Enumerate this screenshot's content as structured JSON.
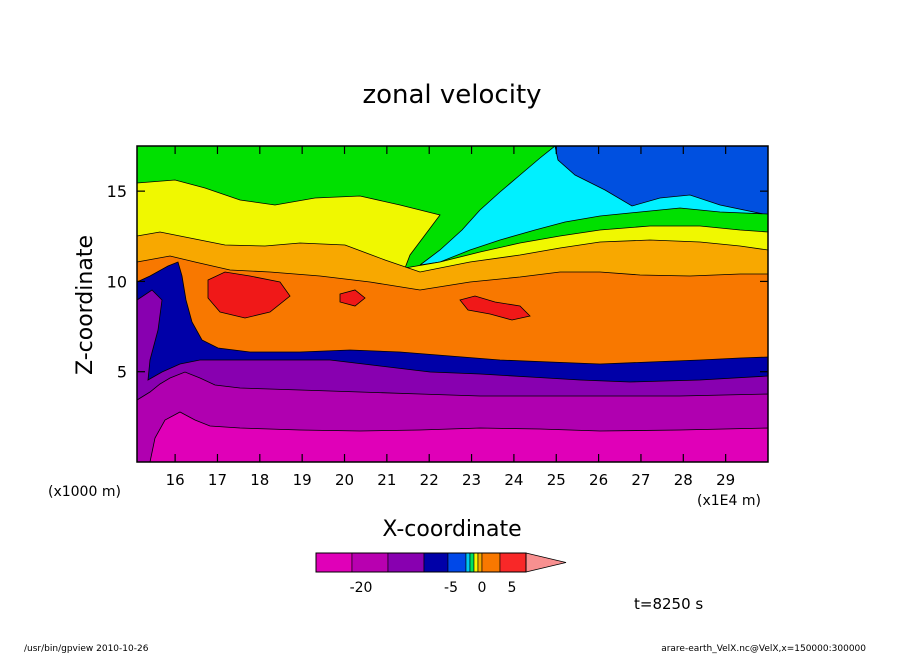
{
  "chart_data": {
    "type": "heatmap",
    "title": "zonal velocity",
    "xlabel": "X-coordinate",
    "ylabel": "Z-coordinate",
    "x_unit": "(x1E4 m)",
    "y_unit": "(x1000 m)",
    "xlim": [
      15.1,
      30.0
    ],
    "ylim": [
      0.0,
      17.5
    ],
    "x_ticks": [
      "16",
      "17",
      "18",
      "19",
      "20",
      "21",
      "22",
      "23",
      "24",
      "25",
      "26",
      "27",
      "28",
      "29"
    ],
    "y_ticks": [
      "5",
      "10",
      "15"
    ],
    "colorbar": {
      "colors": [
        "#e000b8",
        "#b800b0",
        "#8800b0",
        "#0000a8",
        "#0048e8",
        "#00c8f0",
        "#00e060",
        "#f8f800",
        "#f8a800",
        "#f87800",
        "#f82828",
        "#f89090"
      ],
      "labels": [
        "-20",
        "-5",
        "0",
        "5"
      ]
    },
    "time_label": "t=8250 s",
    "footer_left": "/usr/bin/gpview   2010-10-26",
    "footer_right": "arare-earth_VelX.nc@VelX,x=150000:300000",
    "layers": [
      {
        "name": "cyan",
        "color": "#00f0ff"
      },
      {
        "name": "blue-top",
        "color": "#0050e0"
      },
      {
        "name": "green",
        "color": "#00e000"
      },
      {
        "name": "yellow",
        "color": "#f0f800"
      },
      {
        "name": "light-orange",
        "color": "#f8a800"
      },
      {
        "name": "orange",
        "color": "#f87800"
      },
      {
        "name": "red-core",
        "color": "#f01818"
      },
      {
        "name": "blue-jet",
        "color": "#0000a8"
      },
      {
        "name": "violet",
        "color": "#8800b0"
      },
      {
        "name": "purple",
        "color": "#b000b0"
      },
      {
        "name": "magenta",
        "color": "#e000b8"
      }
    ]
  }
}
